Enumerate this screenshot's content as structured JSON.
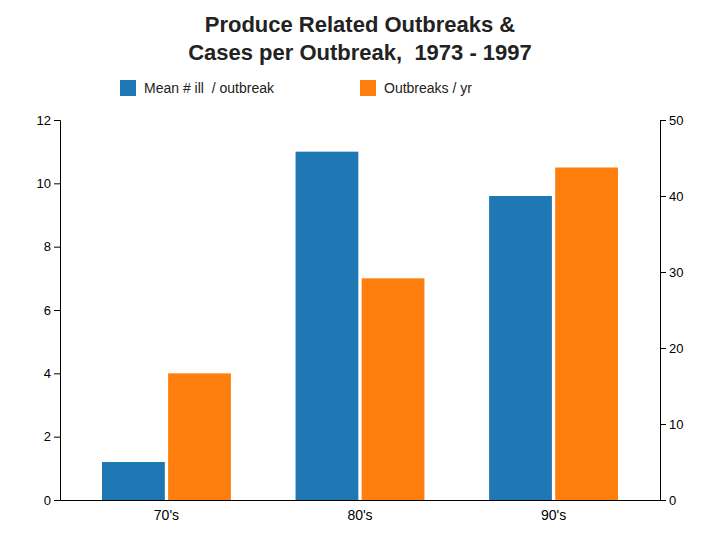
{
  "chart_data": {
    "type": "bar",
    "title": "Produce Related Outbreaks &",
    "subtitle": "Cases per Outbreak,  1973 - 1997",
    "categories": [
      "70's",
      "80's",
      "90's"
    ],
    "series": [
      {
        "name": "Mean # ill  / outbreak",
        "values": [
          1.2,
          11.0,
          9.6
        ]
      },
      {
        "name": "Outbreaks / yr",
        "values": [
          4.0,
          7.0,
          10.5
        ]
      }
    ],
    "ylim": [
      0,
      12
    ],
    "yticks": [
      0,
      2,
      4,
      6,
      8,
      10,
      12
    ],
    "y2lim": [
      0,
      50
    ],
    "y2ticks": [
      0,
      10,
      20,
      30,
      40,
      50
    ],
    "grid": false
  }
}
